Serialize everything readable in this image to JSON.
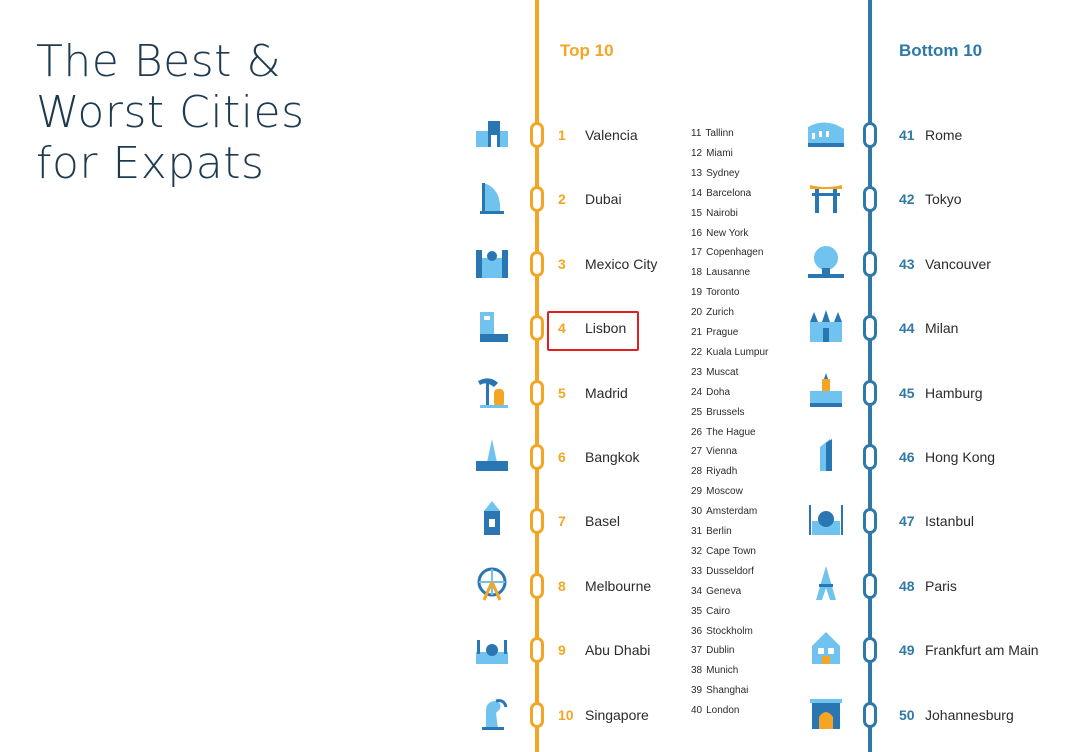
{
  "title": "The Best &\nWorst Cities\nfor Expats",
  "top": {
    "heading": "Top 10",
    "items": [
      {
        "rank": "1",
        "city": "Valencia",
        "icon": "valencia-landmark-icon"
      },
      {
        "rank": "2",
        "city": "Dubai",
        "icon": "burj-al-arab-icon"
      },
      {
        "rank": "3",
        "city": "Mexico City",
        "icon": "cathedral-icon"
      },
      {
        "rank": "4",
        "city": "Lisbon",
        "icon": "belem-tower-icon"
      },
      {
        "rank": "5",
        "city": "Madrid",
        "icon": "bear-statue-icon"
      },
      {
        "rank": "6",
        "city": "Bangkok",
        "icon": "temple-icon"
      },
      {
        "rank": "7",
        "city": "Basel",
        "icon": "tower-icon"
      },
      {
        "rank": "8",
        "city": "Melbourne",
        "icon": "ferris-wheel-icon"
      },
      {
        "rank": "9",
        "city": "Abu Dhabi",
        "icon": "mosque-icon"
      },
      {
        "rank": "10",
        "city": "Singapore",
        "icon": "merlion-icon"
      }
    ]
  },
  "bottom": {
    "heading": "Bottom 10",
    "items": [
      {
        "rank": "41",
        "city": "Rome",
        "icon": "colosseum-icon"
      },
      {
        "rank": "42",
        "city": "Tokyo",
        "icon": "torii-gate-icon"
      },
      {
        "rank": "43",
        "city": "Vancouver",
        "icon": "science-world-dome-icon"
      },
      {
        "rank": "44",
        "city": "Milan",
        "icon": "milan-cathedral-icon"
      },
      {
        "rank": "45",
        "city": "Hamburg",
        "icon": "town-hall-icon"
      },
      {
        "rank": "46",
        "city": "Hong Kong",
        "icon": "skyscraper-icon"
      },
      {
        "rank": "47",
        "city": "Istanbul",
        "icon": "blue-mosque-icon"
      },
      {
        "rank": "48",
        "city": "Paris",
        "icon": "eiffel-tower-icon"
      },
      {
        "rank": "49",
        "city": "Frankfurt am Main",
        "icon": "timber-house-icon"
      },
      {
        "rank": "50",
        "city": "Johannesburg",
        "icon": "arch-building-icon"
      }
    ]
  },
  "middle": [
    {
      "rank": "11",
      "city": "Tallinn"
    },
    {
      "rank": "12",
      "city": "Miami"
    },
    {
      "rank": "13",
      "city": "Sydney"
    },
    {
      "rank": "14",
      "city": "Barcelona"
    },
    {
      "rank": "15",
      "city": "Nairobi"
    },
    {
      "rank": "16",
      "city": "New York"
    },
    {
      "rank": "17",
      "city": "Copenhagen"
    },
    {
      "rank": "18",
      "city": "Lausanne"
    },
    {
      "rank": "19",
      "city": "Toronto"
    },
    {
      "rank": "20",
      "city": "Zurich"
    },
    {
      "rank": "21",
      "city": "Prague"
    },
    {
      "rank": "22",
      "city": "Kuala Lumpur"
    },
    {
      "rank": "23",
      "city": "Muscat"
    },
    {
      "rank": "24",
      "city": "Doha"
    },
    {
      "rank": "25",
      "city": "Brussels"
    },
    {
      "rank": "26",
      "city": "The Hague"
    },
    {
      "rank": "27",
      "city": "Vienna"
    },
    {
      "rank": "28",
      "city": "Riyadh"
    },
    {
      "rank": "29",
      "city": "Moscow"
    },
    {
      "rank": "30",
      "city": "Amsterdam"
    },
    {
      "rank": "31",
      "city": "Berlin"
    },
    {
      "rank": "32",
      "city": "Cape Town"
    },
    {
      "rank": "33",
      "city": "Dusseldorf"
    },
    {
      "rank": "34",
      "city": "Geneva"
    },
    {
      "rank": "35",
      "city": "Cairo"
    },
    {
      "rank": "36",
      "city": "Stockholm"
    },
    {
      "rank": "37",
      "city": "Dublin"
    },
    {
      "rank": "38",
      "city": "Munich"
    },
    {
      "rank": "39",
      "city": "Shanghai"
    },
    {
      "rank": "40",
      "city": "London"
    }
  ],
  "colors": {
    "top": "#f5a524",
    "bottom": "#2f79a8",
    "icon_light": "#6fc3ee",
    "icon_dark": "#2a76b3",
    "highlight": "#e02020"
  },
  "highlight": {
    "rank": "4",
    "city": "Lisbon"
  }
}
